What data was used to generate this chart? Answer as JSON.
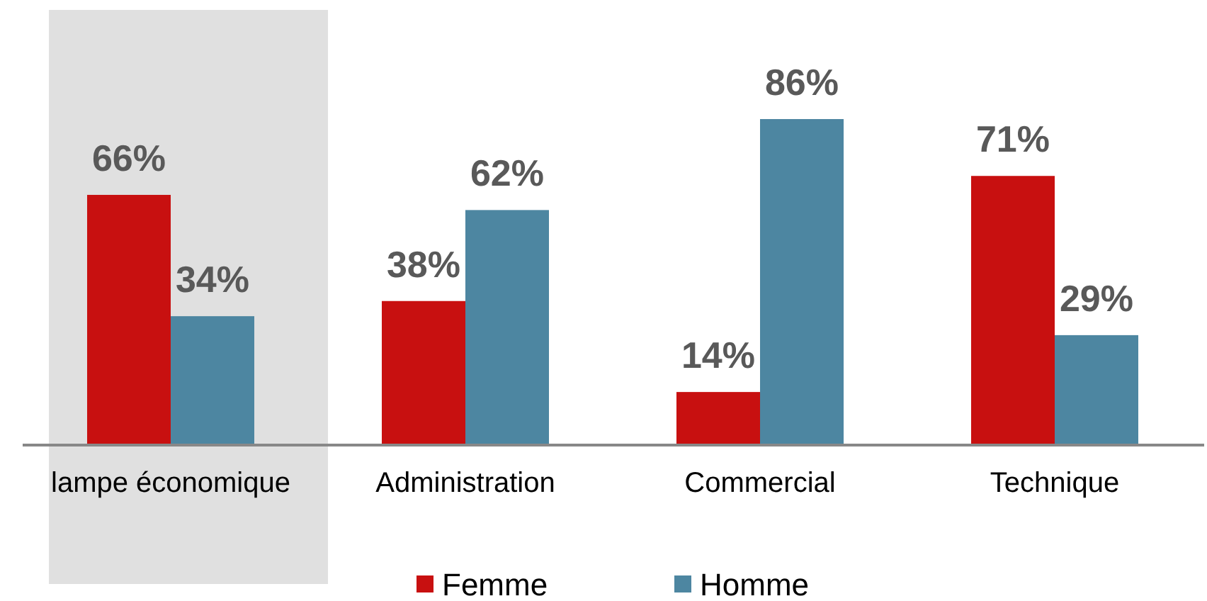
{
  "chart_data": {
    "type": "bar",
    "categories": [
      "lampe économique",
      "Administration",
      "Commercial",
      "Technique"
    ],
    "series": [
      {
        "name": "Femme",
        "color": "#c81010",
        "values": [
          66,
          38,
          14,
          71
        ],
        "value_labels": [
          "66%",
          "38%",
          "14%",
          "71%"
        ]
      },
      {
        "name": "Homme",
        "color": "#4d86a1",
        "values": [
          34,
          62,
          86,
          29
        ],
        "value_labels": [
          "34%",
          "62%",
          "86%",
          "29%"
        ]
      }
    ],
    "bands": [
      {
        "axis": "x",
        "from": "lampe économique",
        "to": "lampe économique",
        "color": "#e0e0e0"
      }
    ],
    "legend": "bottom"
  }
}
